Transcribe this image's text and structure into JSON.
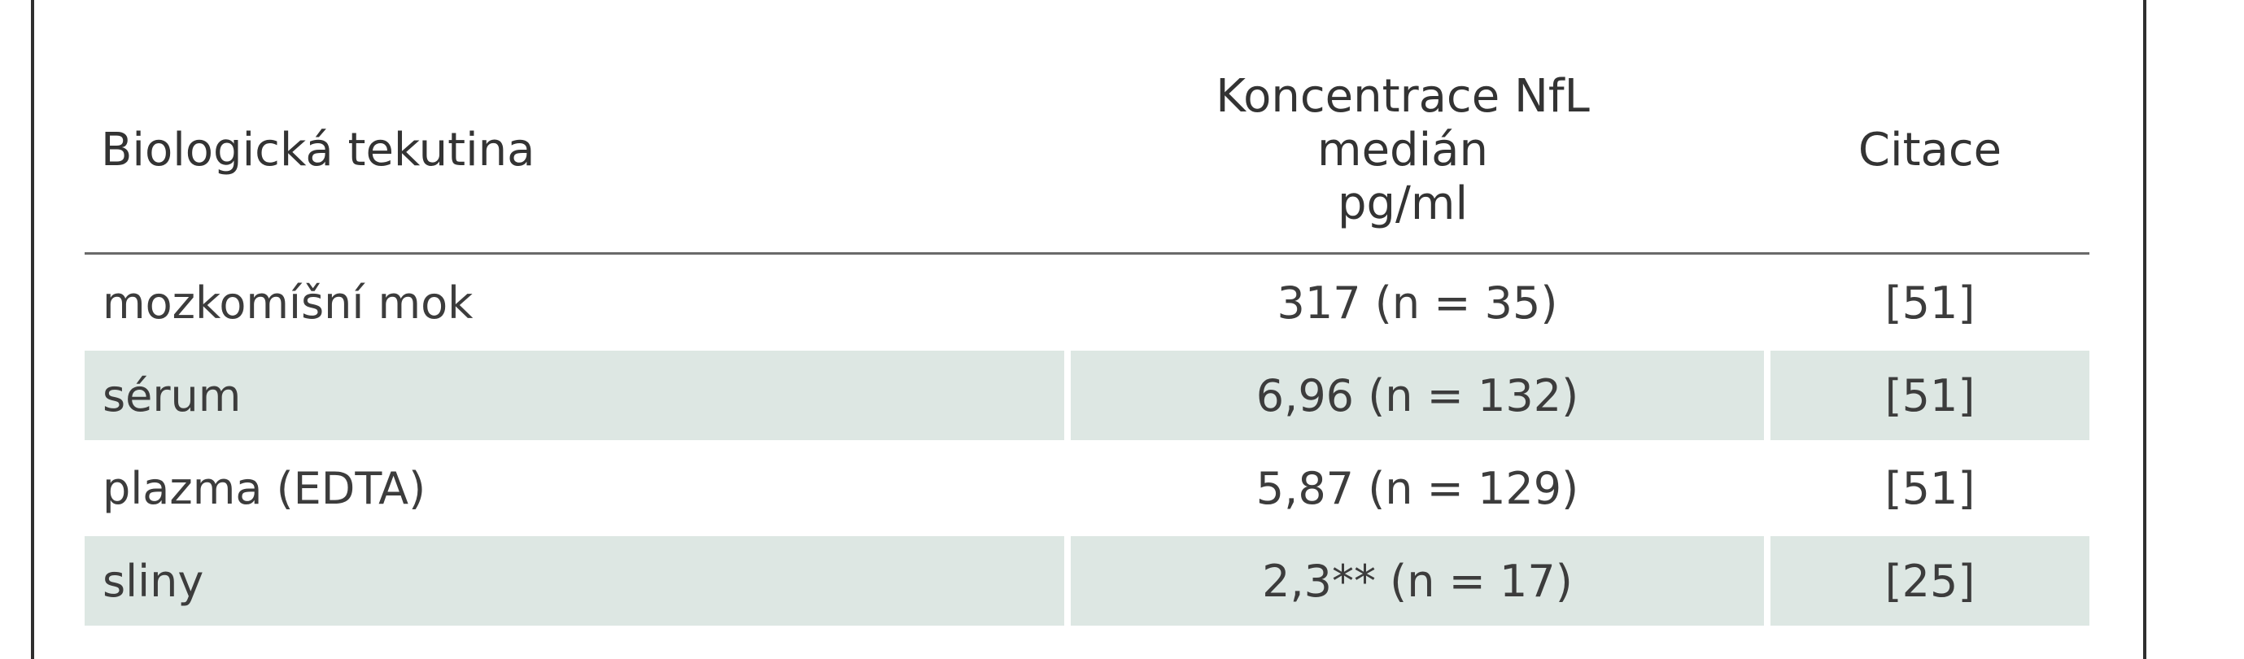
{
  "table": {
    "headers": {
      "fluid": "Biologická tekutina",
      "concentration": [
        "Koncentrace NfL",
        "medián",
        "pg/ml"
      ],
      "citation": "Citace"
    },
    "rows": [
      {
        "fluid": "mozkomíšní mok",
        "concentration": "317 (n = 35)",
        "citation": "[51]",
        "shaded": false
      },
      {
        "fluid": "sérum",
        "concentration": "6,96 (n = 132)",
        "citation": "[51]",
        "shaded": true
      },
      {
        "fluid": "plazma (EDTA)",
        "concentration": "5,87 (n = 129)",
        "citation": "[51]",
        "shaded": false
      },
      {
        "fluid": "sliny",
        "concentration": "2,3** (n = 17)",
        "citation": "[25]",
        "shaded": true
      }
    ],
    "colors": {
      "shade": "#dde7e3",
      "text": "#3c3c3c",
      "rule": "#6a6a6a"
    }
  }
}
